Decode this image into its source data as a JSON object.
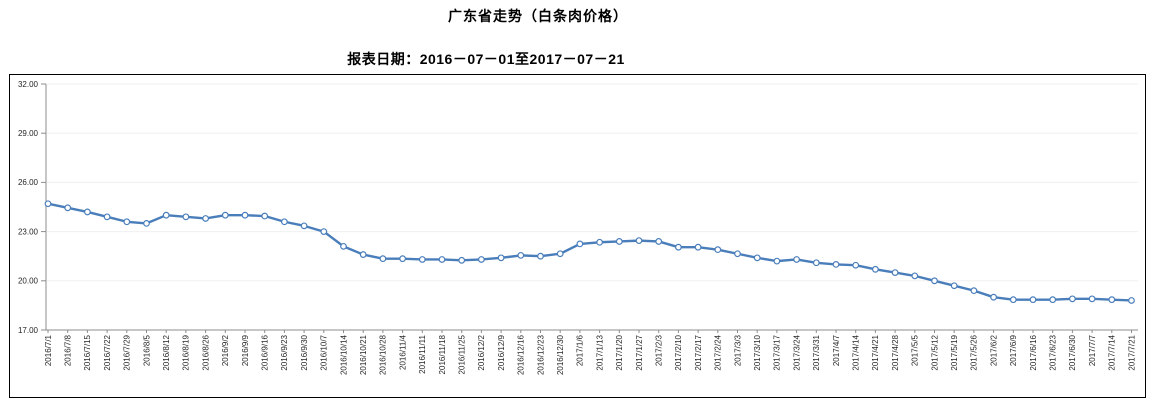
{
  "header": {
    "title": "广东省走势（白条肉价格）",
    "subtitle": "报表日期：2016－07－01至2017－07－21"
  },
  "chart_data": {
    "type": "line",
    "title": "广东省走势（白条肉价格）",
    "subtitle": "报表日期：2016－07－01至2017－07－21",
    "xlabel": "",
    "ylabel": "",
    "ylim": [
      17,
      32
    ],
    "yticks": [
      17,
      20,
      23,
      26,
      29,
      32
    ],
    "ytick_labels": [
      "17.00",
      "20.00",
      "23.00",
      "26.00",
      "29.00",
      "32.00"
    ],
    "grid": true,
    "legend_position": "none",
    "x": [
      "2016/7/1",
      "2016/7/8",
      "2016/7/15",
      "2016/7/22",
      "2016/7/29",
      "2016/8/5",
      "2016/8/12",
      "2016/8/19",
      "2016/8/26",
      "2016/9/2",
      "2016/9/9",
      "2016/9/16",
      "2016/9/23",
      "2016/9/30",
      "2016/10/7",
      "2016/10/14",
      "2016/10/21",
      "2016/10/28",
      "2016/11/4",
      "2016/11/11",
      "2016/11/18",
      "2016/11/25",
      "2016/12/2",
      "2016/12/9",
      "2016/12/16",
      "2016/12/23",
      "2016/12/30",
      "2017/1/6",
      "2017/1/13",
      "2017/1/20",
      "2017/1/27",
      "2017/2/3",
      "2017/2/10",
      "2017/2/17",
      "2017/2/24",
      "2017/3/3",
      "2017/3/10",
      "2017/3/17",
      "2017/3/24",
      "2017/3/31",
      "2017/4/7",
      "2017/4/14",
      "2017/4/21",
      "2017/4/28",
      "2017/5/5",
      "2017/5/12",
      "2017/5/19",
      "2017/5/26",
      "2017/6/2",
      "2017/6/9",
      "2017/6/16",
      "2017/6/23",
      "2017/6/30",
      "2017/7/7",
      "2017/7/14",
      "2017/7/21"
    ],
    "series": [
      {
        "name": "白条肉价格",
        "marker": "hollow-circle",
        "values": [
          24.7,
          24.45,
          24.2,
          23.9,
          23.6,
          23.5,
          24.0,
          23.9,
          23.8,
          24.0,
          24.0,
          23.95,
          23.6,
          23.35,
          23.0,
          22.1,
          21.6,
          21.35,
          21.35,
          21.3,
          21.3,
          21.25,
          21.3,
          21.4,
          21.55,
          21.5,
          21.65,
          22.25,
          22.35,
          22.4,
          22.45,
          22.4,
          22.05,
          22.05,
          21.9,
          21.65,
          21.4,
          21.2,
          21.3,
          21.1,
          21.0,
          20.95,
          20.7,
          20.5,
          20.3,
          20.0,
          19.7,
          19.4,
          19.0,
          18.85,
          18.85,
          18.85,
          18.9,
          18.9,
          18.85,
          18.8
        ]
      }
    ],
    "colors": {
      "line": "#4a7ebb",
      "marker_fill": "#ffffff",
      "grid": "#f0f0f0",
      "axis": "#8c8c8c",
      "tick_text": "#262626",
      "frame_border": "#000000"
    }
  }
}
